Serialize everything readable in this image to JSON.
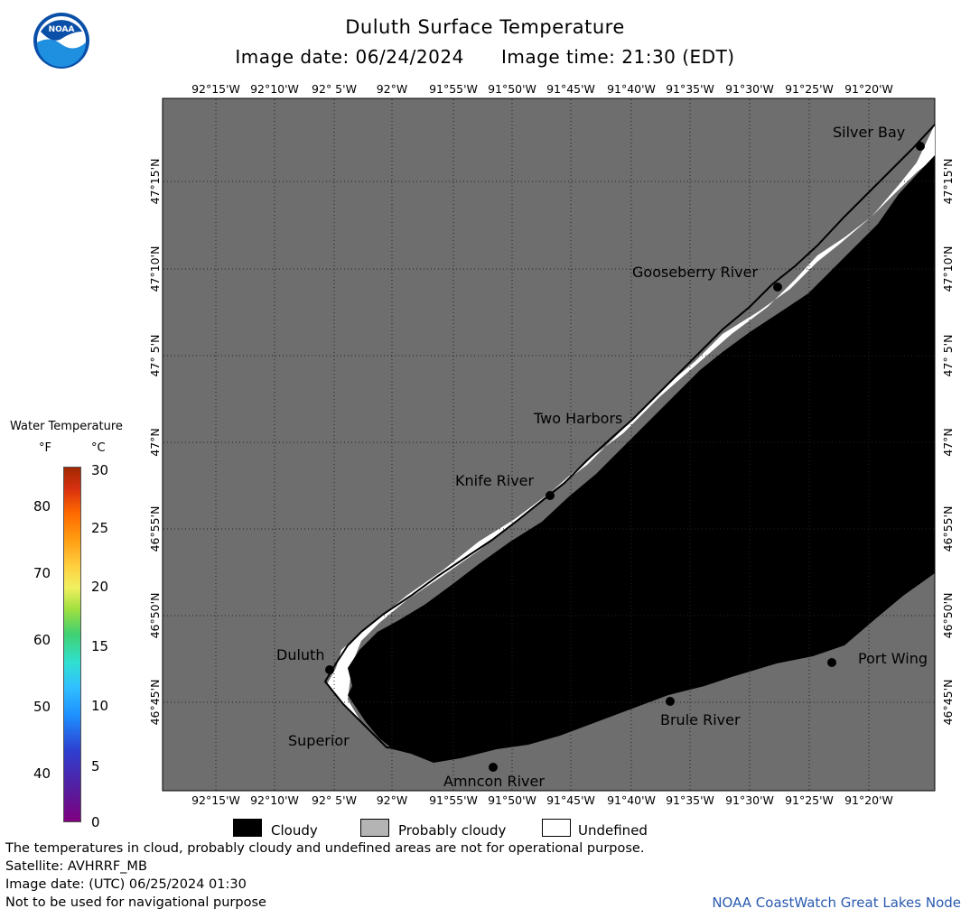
{
  "header": {
    "title": "Duluth Surface Temperature",
    "subtitle_date": "Image date: 06/24/2024",
    "subtitle_time": "Image time: 21:30 (EDT)"
  },
  "logo": {
    "icon": "noaa-logo-icon",
    "text": "NOAA"
  },
  "map": {
    "background_color": "#6e6e6e",
    "cloud_color": "#000000",
    "undefined_color": "#ffffff",
    "grid_style": "dotted",
    "lon_labels": [
      "92°15'W",
      "92°10'W",
      "92° 5'W",
      "92°W",
      "91°55'W",
      "91°50'W",
      "91°45'W",
      "91°40'W",
      "91°35'W",
      "91°30'W",
      "91°25'W",
      "91°20'W"
    ],
    "lat_labels": [
      "47°15'N",
      "47°10'N",
      "47° 5'N",
      "47°N",
      "46°55'N",
      "46°50'N",
      "46°45'N"
    ],
    "places": [
      {
        "name": "Silver Bay"
      },
      {
        "name": "Gooseberry River"
      },
      {
        "name": "Two Harbors"
      },
      {
        "name": "Knife River"
      },
      {
        "name": "Duluth"
      },
      {
        "name": "Superior"
      },
      {
        "name": "Amncon River"
      },
      {
        "name": "Brule River"
      },
      {
        "name": "Port Wing"
      }
    ]
  },
  "legend": {
    "title": "Water Temperature",
    "unit_f": "°F",
    "unit_c": "°C",
    "f_ticks": [
      "80",
      "70",
      "60",
      "50",
      "40"
    ],
    "c_ticks": [
      "30",
      "25",
      "20",
      "15",
      "10",
      "5",
      "0"
    ]
  },
  "key": {
    "cloudy": "Cloudy",
    "probably_cloudy": "Probably cloudy",
    "undefined": "Undefined",
    "cloudy_color": "#000000",
    "probably_cloudy_color": "#b4b4b4",
    "undefined_color": "#ffffff"
  },
  "footer": {
    "line1": "The temperatures in cloud, probably cloudy and undefined areas are not for operational purpose.",
    "line2": "Satellite: AVHRRF_MB",
    "line3": "Image date: (UTC) 06/25/2024  01:30",
    "line4": "Not to be used for navigational purpose",
    "credit": "NOAA CoastWatch Great Lakes Node"
  }
}
